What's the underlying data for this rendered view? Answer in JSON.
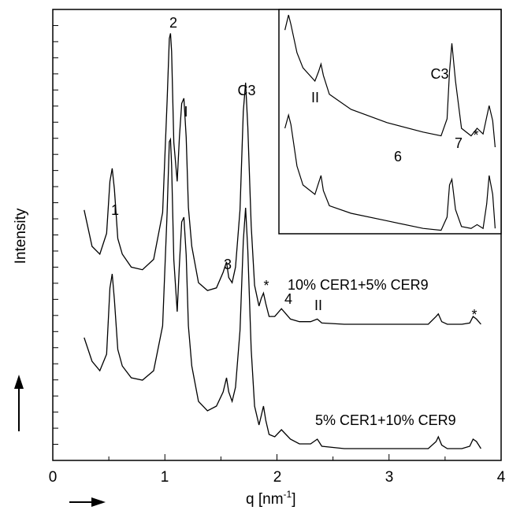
{
  "chart_data": {
    "type": "line",
    "xlabel": "q [nm",
    "xlabel_sup": "-1",
    "xlabel_close": "]",
    "ylabel": "Intensity",
    "xlim": [
      0,
      4
    ],
    "x_ticks": [
      "0",
      "1",
      "2",
      "3",
      "4"
    ],
    "y_ticks_labeled": false,
    "series": [
      {
        "name": "10% CER1+5% CER9",
        "x": [
          0.28,
          0.35,
          0.42,
          0.48,
          0.51,
          0.53,
          0.55,
          0.58,
          0.62,
          0.7,
          0.8,
          0.9,
          0.98,
          1.02,
          1.04,
          1.05,
          1.06,
          1.08,
          1.11,
          1.13,
          1.15,
          1.17,
          1.19,
          1.21,
          1.24,
          1.3,
          1.38,
          1.46,
          1.52,
          1.55,
          1.57,
          1.6,
          1.63,
          1.67,
          1.7,
          1.72,
          1.74,
          1.77,
          1.8,
          1.84,
          1.86,
          1.88,
          1.9,
          1.93,
          1.98,
          2.04,
          2.08,
          2.12,
          2.2,
          2.3,
          2.36,
          2.4,
          2.6,
          3.0,
          3.35,
          3.42,
          3.44,
          3.47,
          3.52,
          3.65,
          3.72,
          3.75,
          3.78,
          3.82
        ],
        "y": [
          0.44,
          0.3,
          0.27,
          0.35,
          0.55,
          0.6,
          0.52,
          0.33,
          0.27,
          0.22,
          0.21,
          0.25,
          0.43,
          0.86,
          1.1,
          1.12,
          1.05,
          0.7,
          0.55,
          0.72,
          0.85,
          0.87,
          0.72,
          0.45,
          0.3,
          0.16,
          0.13,
          0.14,
          0.2,
          0.24,
          0.18,
          0.16,
          0.22,
          0.44,
          0.82,
          0.93,
          0.76,
          0.38,
          0.15,
          0.07,
          0.1,
          0.12,
          0.08,
          0.03,
          0.03,
          0.06,
          0.04,
          0.02,
          0.01,
          0.01,
          0.02,
          0.005,
          0.0,
          0.0,
          0.0,
          0.03,
          0.04,
          0.01,
          0.0,
          0.0,
          0.005,
          0.03,
          0.02,
          0.0
        ]
      },
      {
        "name": "5% CER1+10% CER9",
        "x": [
          0.28,
          0.35,
          0.42,
          0.48,
          0.51,
          0.53,
          0.55,
          0.58,
          0.62,
          0.7,
          0.8,
          0.9,
          0.98,
          1.02,
          1.04,
          1.05,
          1.06,
          1.08,
          1.11,
          1.13,
          1.15,
          1.17,
          1.19,
          1.21,
          1.24,
          1.3,
          1.38,
          1.46,
          1.52,
          1.55,
          1.57,
          1.6,
          1.63,
          1.67,
          1.7,
          1.72,
          1.74,
          1.77,
          1.8,
          1.84,
          1.86,
          1.88,
          1.9,
          1.93,
          1.98,
          2.04,
          2.08,
          2.12,
          2.2,
          2.3,
          2.36,
          2.4,
          2.6,
          3.0,
          3.35,
          3.42,
          3.44,
          3.47,
          3.52,
          3.65,
          3.72,
          3.75,
          3.78,
          3.82
        ],
        "y": [
          0.47,
          0.37,
          0.33,
          0.4,
          0.68,
          0.74,
          0.63,
          0.42,
          0.35,
          0.3,
          0.29,
          0.33,
          0.52,
          1.0,
          1.3,
          1.31,
          1.2,
          0.8,
          0.58,
          0.78,
          0.96,
          0.98,
          0.82,
          0.52,
          0.35,
          0.2,
          0.16,
          0.18,
          0.24,
          0.3,
          0.24,
          0.2,
          0.26,
          0.5,
          0.88,
          1.02,
          0.84,
          0.42,
          0.18,
          0.1,
          0.14,
          0.18,
          0.12,
          0.06,
          0.05,
          0.08,
          0.06,
          0.04,
          0.02,
          0.02,
          0.04,
          0.01,
          0.0,
          0.0,
          0.0,
          0.03,
          0.05,
          0.015,
          0.0,
          0.0,
          0.01,
          0.04,
          0.03,
          0.0
        ]
      }
    ],
    "peak_labels": [
      "1",
      "2",
      "I",
      "C3",
      "3",
      "*",
      "4",
      "II",
      "*"
    ],
    "inset": {
      "peak_labels": [
        "II",
        "6",
        "C3",
        "7",
        "*"
      ],
      "x": [
        2.05,
        2.08,
        2.1,
        2.15,
        2.2,
        2.3,
        2.33,
        2.35,
        2.37,
        2.42,
        2.6,
        2.9,
        3.2,
        3.35,
        3.4,
        3.42,
        3.44,
        3.47,
        3.52,
        3.6,
        3.65,
        3.7,
        3.73,
        3.75,
        3.78,
        3.8
      ],
      "upper": [
        0.82,
        0.9,
        0.85,
        0.7,
        0.62,
        0.55,
        0.6,
        0.64,
        0.58,
        0.48,
        0.4,
        0.33,
        0.28,
        0.26,
        0.35,
        0.6,
        0.75,
        0.55,
        0.3,
        0.26,
        0.3,
        0.27,
        0.36,
        0.42,
        0.34,
        0.2
      ],
      "lower": [
        0.55,
        0.62,
        0.57,
        0.35,
        0.25,
        0.2,
        0.26,
        0.3,
        0.22,
        0.14,
        0.1,
        0.06,
        0.02,
        0.01,
        0.08,
        0.25,
        0.28,
        0.12,
        0.03,
        0.02,
        0.04,
        0.02,
        0.15,
        0.3,
        0.2,
        0.02
      ]
    }
  },
  "annotations": {
    "arrow_up": "up-arrow",
    "arrow_right": "right-arrow"
  }
}
